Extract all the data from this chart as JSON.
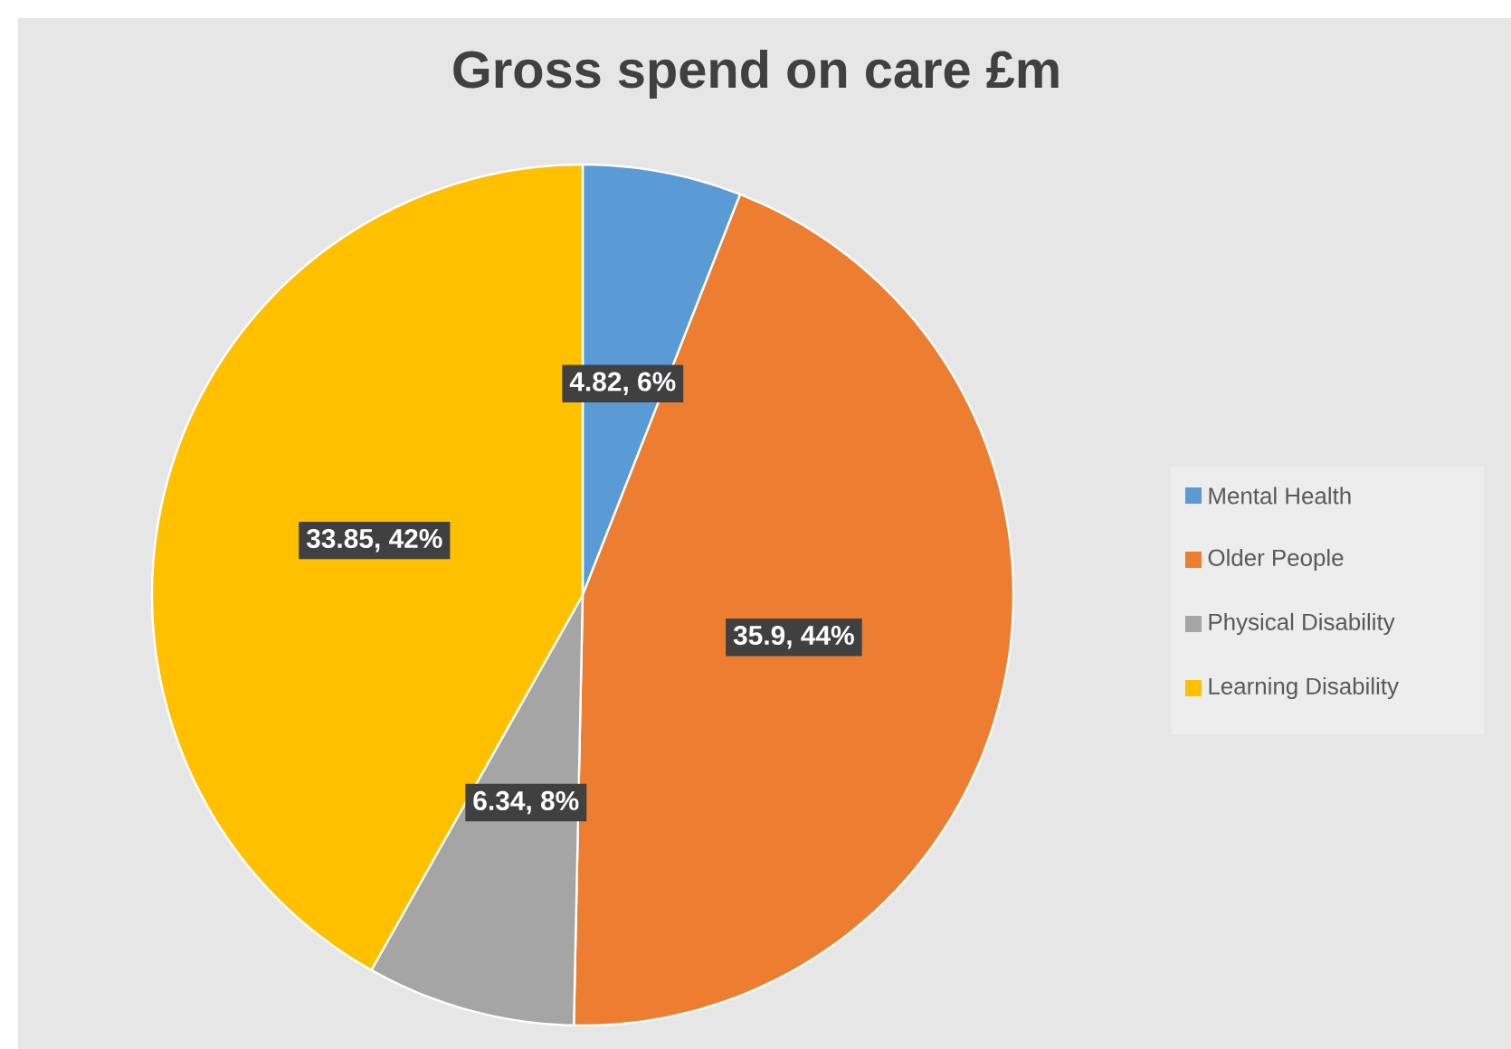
{
  "chart_data": {
    "type": "pie",
    "title": "Gross spend on care £m",
    "categories": [
      "Mental Health",
      "Older People",
      "Physical Disability",
      "Learning Disability"
    ],
    "values": [
      4.82,
      35.9,
      6.34,
      33.85
    ],
    "colors": [
      "#5b9bd5",
      "#ed7d31",
      "#a5a5a5",
      "#ffc000"
    ],
    "value_labels": [
      "4.82, 6%",
      "35.9, 44%",
      "6.34, 8%",
      "33.85, 42%"
    ],
    "legend": "right"
  }
}
